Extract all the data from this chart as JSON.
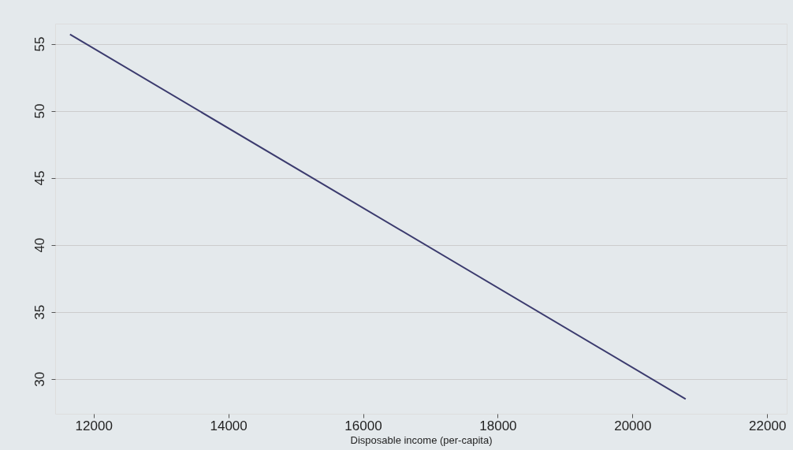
{
  "chart_data": {
    "type": "line",
    "xlabel": "Disposable income (per-capita)",
    "x": [
      11650,
      20790
    ],
    "series": [
      {
        "color": "#3b3b6e",
        "values": [
          55.7,
          28.5
        ]
      }
    ],
    "xlim": [
      11430,
      22290
    ],
    "xticks": [
      12000,
      14000,
      16000,
      18000,
      20000,
      22000
    ],
    "ylim": [
      27.4,
      56.5
    ],
    "yticks": [
      30,
      35,
      40,
      45,
      50,
      55
    ],
    "grid": "y",
    "marker": "none",
    "line_style": "solid"
  }
}
